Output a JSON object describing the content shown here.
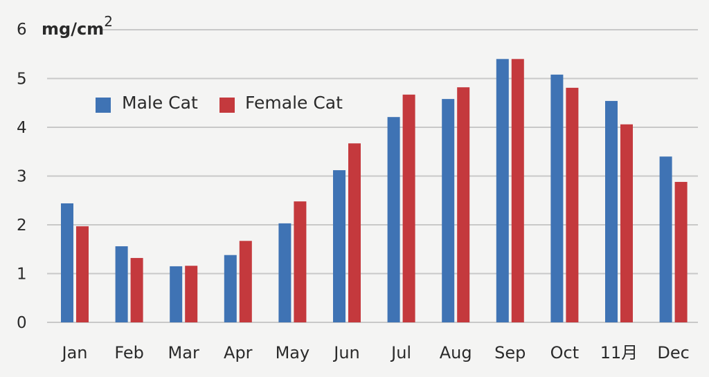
{
  "chart_data": {
    "type": "bar",
    "ylabel_unit": "mg/cm",
    "ylabel_sup": "2",
    "categories": [
      "Jan",
      "Feb",
      "Mar",
      "Apr",
      "May",
      "Jun",
      "Jul",
      "Aug",
      "Sep",
      "Oct",
      "11月",
      "Dec"
    ],
    "series": [
      {
        "name": "Male Cat",
        "color": "#3f73b4",
        "values": [
          2.44,
          1.56,
          1.15,
          1.38,
          2.03,
          3.12,
          4.21,
          4.58,
          5.4,
          5.08,
          4.54,
          3.4
        ]
      },
      {
        "name": "Female Cat",
        "color": "#c4393d",
        "values": [
          1.97,
          1.32,
          1.16,
          1.67,
          2.48,
          3.67,
          4.67,
          4.82,
          5.4,
          4.81,
          4.06,
          2.88
        ]
      }
    ],
    "ylim": [
      0,
      6
    ],
    "yticks": [
      "0",
      "1",
      "2",
      "3",
      "4",
      "5",
      "6"
    ],
    "grid": true,
    "legend_position": "top-left"
  }
}
